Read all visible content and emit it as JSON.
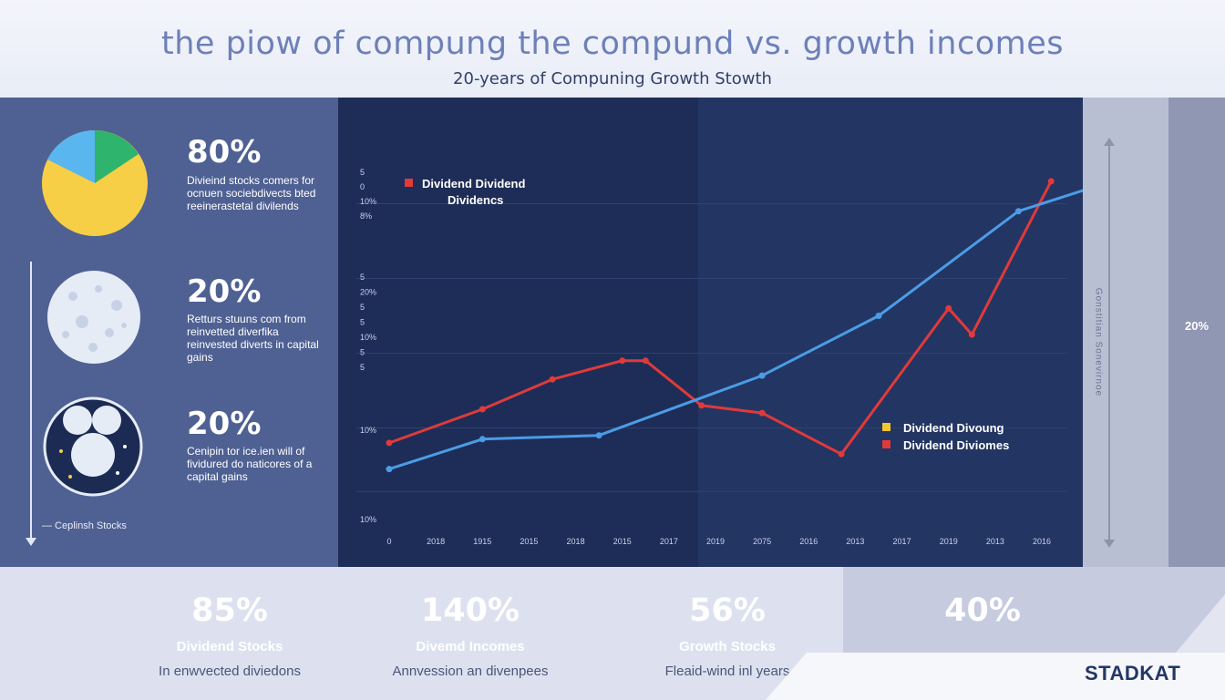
{
  "header": {
    "title": "the piow of compung the compund vs. growth incomes",
    "subtitle": "20-years of Compuning Growth Stowth"
  },
  "left_panel": {
    "stats": [
      {
        "value": "80%",
        "desc": "Divieind stocks comers for ocnuen sociebdivects bted reeinerastetal divilends"
      },
      {
        "value": "20%",
        "desc": "Retturs stuuns com from reinvetted diverfika reinvested diverts in capital gains"
      },
      {
        "value": "20%",
        "desc": "Cenipin tor ice.ien will of fividured do naticores of a capital gains"
      }
    ],
    "axis_label": "— Ceplinsh Stocks",
    "pie_colors": {
      "yellow": "#f7cf46",
      "blue": "#5ab6ee",
      "green": "#2fb46e"
    }
  },
  "right_panel": {
    "percent": "20%",
    "axis_text": "Gonstitian Sonevirnoe"
  },
  "chart_data": {
    "type": "line",
    "title": "",
    "x": [
      "0",
      "2018",
      "1915",
      "2015",
      "2018",
      "2015",
      "2017",
      "2019",
      "2075",
      "2016",
      "2013",
      "2017",
      "2019",
      "2013",
      "2016"
    ],
    "y_ticks_top": [
      "5",
      "0",
      "10%",
      "8%"
    ],
    "y_ticks_mid": [
      "5",
      "20%",
      "5",
      "5",
      "10%",
      "5",
      "5"
    ],
    "y_ticks_low": [
      "10%",
      "10%"
    ],
    "ylim": [
      0,
      100
    ],
    "series": [
      {
        "name": "Dividend Dividend",
        "color": "#e03a3a",
        "points": [
          {
            "x": 0,
            "y": 21
          },
          {
            "x": 2,
            "y": 30
          },
          {
            "x": 3.5,
            "y": 38
          },
          {
            "x": 5,
            "y": 43
          },
          {
            "x": 5.5,
            "y": 43
          },
          {
            "x": 6.7,
            "y": 31
          },
          {
            "x": 8,
            "y": 29
          },
          {
            "x": 9.7,
            "y": 18
          },
          {
            "x": 12,
            "y": 57
          },
          {
            "x": 12.5,
            "y": 50
          },
          {
            "x": 14.2,
            "y": 91
          }
        ]
      },
      {
        "name": "Dividend Divoung",
        "color": "#4b9ce6",
        "points": [
          {
            "x": 0,
            "y": 14
          },
          {
            "x": 2,
            "y": 22
          },
          {
            "x": 4.5,
            "y": 23
          },
          {
            "x": 8,
            "y": 39
          },
          {
            "x": 10.5,
            "y": 55
          },
          {
            "x": 13.5,
            "y": 83
          },
          {
            "x": 15,
            "y": 89
          }
        ]
      }
    ],
    "legend_top": {
      "label_1": "Dividend Dividend",
      "label_2": "Dividencs",
      "color": "#e03a3a"
    },
    "legend_bottom": [
      {
        "label": "Dividend Divoung",
        "color": "#f2c531"
      },
      {
        "label": "Dividend Diviomes",
        "color": "#e03a3a"
      }
    ]
  },
  "bottom": {
    "stats": [
      {
        "value": "85%",
        "label": "Dividend Stocks",
        "sub": "In enwvected diviedons"
      },
      {
        "value": "140%",
        "label": "Divemd Incomes",
        "sub": "Annvession an divenpees"
      },
      {
        "value": "56%",
        "label": "Growth Stocks",
        "sub": "Fleaid-wind inl years"
      },
      {
        "value": "40%"
      }
    ],
    "brand": "STADKAT"
  }
}
